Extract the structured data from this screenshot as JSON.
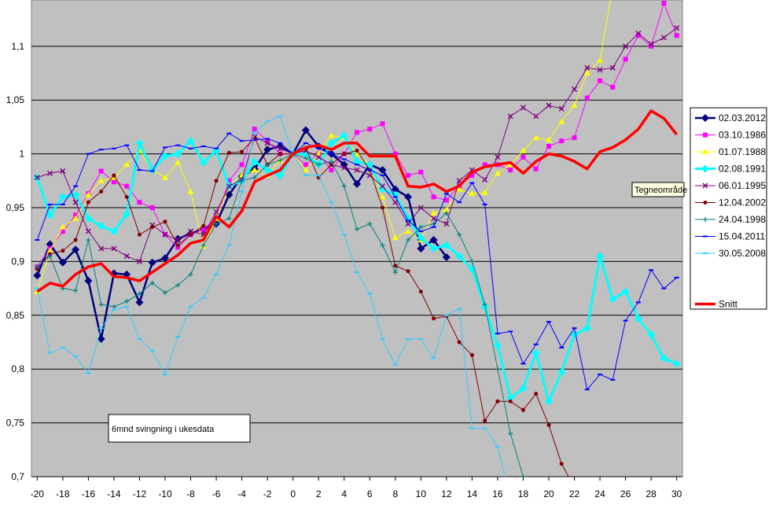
{
  "chart_data": {
    "type": "line",
    "annotation": "6mnd svingning i ukesdata",
    "tooltip": "Tegneområde",
    "x": [
      -20,
      -19,
      -18,
      -17,
      -16,
      -15,
      -14,
      -13,
      -12,
      -11,
      -10,
      -9,
      -8,
      -7,
      -6,
      -5,
      -4,
      -3,
      -2,
      -1,
      0,
      1,
      2,
      3,
      4,
      5,
      6,
      7,
      8,
      9,
      10,
      11,
      12,
      13,
      14,
      15,
      16,
      17,
      18,
      19,
      20,
      21,
      22,
      23,
      24,
      25,
      26,
      27,
      28,
      29,
      30
    ],
    "xlim": [
      -20.45,
      30.45
    ],
    "xticks": [
      -20,
      -18,
      -16,
      -14,
      -12,
      -10,
      -8,
      -6,
      -4,
      -2,
      0,
      2,
      4,
      6,
      8,
      10,
      12,
      14,
      16,
      18,
      20,
      22,
      24,
      26,
      28,
      30
    ],
    "ylim": [
      0.7,
      1.143
    ],
    "yticks": [
      {
        "value": 0.7,
        "label": "0,7"
      },
      {
        "value": 0.75,
        "label": "0,75"
      },
      {
        "value": 0.8,
        "label": "0,8"
      },
      {
        "value": 0.85,
        "label": "0,85"
      },
      {
        "value": 0.9,
        "label": "0,9"
      },
      {
        "value": 0.95,
        "label": "0,95"
      },
      {
        "value": 1,
        "label": "1"
      },
      {
        "value": 1.05,
        "label": "1,05"
      },
      {
        "value": 1.1,
        "label": "1,1"
      }
    ],
    "grid": true,
    "legend": "right",
    "series": [
      {
        "name": "02.03.2012",
        "color": "#000080",
        "marker": "diamond",
        "width": 2.5,
        "values": [
          0.887,
          0.916,
          0.899,
          0.911,
          0.882,
          0.828,
          0.889,
          0.888,
          0.862,
          0.899,
          0.903,
          0.921,
          0.926,
          0.93,
          0.935,
          0.962,
          0.979,
          0.986,
          1.004,
          1.007,
          1.0,
          1.022,
          1.007,
          1.0,
          0.99,
          0.972,
          0.99,
          0.985,
          0.967,
          0.96,
          0.912,
          0.92,
          0.904,
          null,
          null,
          null,
          null,
          null,
          null,
          null,
          null,
          null,
          null,
          null,
          null,
          null,
          null,
          null,
          null,
          null,
          null
        ]
      },
      {
        "name": "03.10.1986",
        "color": "#ff00ff",
        "marker": "square",
        "width": 1,
        "values": [
          0.895,
          0.912,
          0.928,
          0.943,
          0.963,
          0.984,
          0.974,
          0.97,
          0.955,
          0.95,
          0.925,
          0.913,
          0.925,
          0.93,
          0.94,
          0.975,
          0.99,
          1.023,
          1.012,
          1.0,
          1.0,
          0.99,
          1.0,
          0.985,
          1.0,
          1.02,
          1.023,
          1.028,
          1.0,
          0.98,
          0.983,
          0.96,
          0.957,
          0.97,
          0.98,
          0.99,
          0.99,
          0.985,
          0.997,
          0.986,
          1.007,
          1.012,
          1.015,
          1.052,
          1.068,
          1.062,
          1.088,
          1.11,
          1.1,
          1.14,
          1.11
        ]
      },
      {
        "name": "01.07.1988",
        "color": "#ffff00",
        "marker": "triangle",
        "width": 1,
        "values": [
          0.872,
          0.91,
          0.932,
          0.94,
          0.962,
          0.975,
          0.978,
          0.99,
          1.003,
          0.985,
          0.978,
          0.992,
          0.965,
          0.914,
          0.94,
          0.97,
          0.98,
          0.985,
          0.98,
          0.994,
          1.0,
          0.985,
          1.0,
          1.017,
          1.015,
          1.0,
          0.99,
          0.96,
          0.922,
          0.928,
          0.92,
          0.945,
          0.948,
          0.967,
          0.963,
          0.964,
          0.982,
          0.99,
          1.003,
          1.015,
          1.013,
          1.03,
          1.045,
          1.075,
          1.087,
          1.155,
          null,
          null,
          null,
          null,
          null
        ]
      },
      {
        "name": "02.08.1991",
        "color": "#00ffff",
        "marker": "diamond",
        "width": 3,
        "values": [
          0.978,
          0.943,
          0.96,
          0.962,
          0.94,
          0.933,
          0.928,
          0.944,
          1.01,
          0.985,
          0.998,
          1.0,
          1.012,
          0.992,
          1.003,
          0.97,
          0.975,
          0.993,
          0.985,
          0.98,
          1.0,
          1.0,
          0.99,
          1.01,
          1.017,
          0.993,
          0.99,
          0.967,
          0.962,
          0.94,
          0.922,
          0.912,
          0.915,
          0.905,
          0.893,
          0.858,
          0.822,
          0.773,
          0.782,
          0.815,
          0.77,
          0.797,
          0.832,
          0.838,
          0.905,
          0.865,
          0.872,
          0.847,
          0.832,
          0.81,
          0.805
        ]
      },
      {
        "name": "06.01.1995",
        "color": "#800080",
        "marker": "x",
        "width": 1,
        "values": [
          0.978,
          0.982,
          0.984,
          0.955,
          0.928,
          0.912,
          0.912,
          0.905,
          0.9,
          0.934,
          0.925,
          0.92,
          0.928,
          0.925,
          0.946,
          0.97,
          0.976,
          1.016,
          1.01,
          1.005,
          1.0,
          1.003,
          0.997,
          0.99,
          0.987,
          0.985,
          0.98,
          0.97,
          0.955,
          0.935,
          0.95,
          0.94,
          0.935,
          0.975,
          0.985,
          0.976,
          0.997,
          1.035,
          1.043,
          1.035,
          1.045,
          1.042,
          1.06,
          1.08,
          1.078,
          1.08,
          1.1,
          1.112,
          1.102,
          1.108,
          1.117
        ]
      },
      {
        "name": "12.04.2002",
        "color": "#800000",
        "marker": "circle",
        "width": 1,
        "values": [
          0.893,
          0.907,
          0.91,
          0.92,
          0.955,
          0.965,
          0.98,
          0.96,
          0.925,
          0.932,
          0.937,
          0.915,
          0.925,
          0.933,
          0.975,
          1.001,
          1.002,
          1.015,
          0.99,
          1.0,
          1.0,
          1.005,
          0.978,
          0.99,
          1.0,
          1.003,
          0.985,
          0.95,
          0.896,
          0.891,
          0.872,
          0.847,
          0.849,
          0.825,
          0.813,
          0.752,
          0.77,
          0.77,
          0.762,
          0.777,
          0.748,
          0.712,
          0.69,
          null,
          null,
          null,
          null,
          null,
          null,
          null,
          null
        ]
      },
      {
        "name": "24.04.1998",
        "color": "#008080",
        "marker": "plus",
        "width": 1,
        "values": [
          0.895,
          0.905,
          0.875,
          0.873,
          0.92,
          0.86,
          0.858,
          0.863,
          0.87,
          0.88,
          0.871,
          0.878,
          0.888,
          0.915,
          0.935,
          0.94,
          0.975,
          0.978,
          0.99,
          0.994,
          1.0,
          0.996,
          0.99,
          0.993,
          0.97,
          0.93,
          0.935,
          0.915,
          0.89,
          0.92,
          0.932,
          0.935,
          0.945,
          0.925,
          0.9,
          0.86,
          0.8,
          0.74,
          0.7,
          0.68,
          null,
          null,
          null,
          null,
          null,
          null,
          null,
          null,
          null,
          null,
          null
        ]
      },
      {
        "name": "15.04.2011",
        "color": "#0000ff",
        "marker": "dash",
        "width": 1,
        "values": [
          0.92,
          0.953,
          0.953,
          0.97,
          1.0,
          1.004,
          1.005,
          1.008,
          0.985,
          0.984,
          1.006,
          1.008,
          1.005,
          1.007,
          1.005,
          1.019,
          1.012,
          1.013,
          1.014,
          1.01,
          1.0,
          1.01,
          1.005,
          1.0,
          0.995,
          0.99,
          0.985,
          0.98,
          0.96,
          0.938,
          0.928,
          0.932,
          0.963,
          0.955,
          0.973,
          0.953,
          0.833,
          0.835,
          0.805,
          0.823,
          0.844,
          0.82,
          0.838,
          0.781,
          0.795,
          0.79,
          0.845,
          0.862,
          0.892,
          0.875,
          0.885
        ]
      },
      {
        "name": "30.05.2008",
        "color": "#33ccff",
        "marker": "dash",
        "width": 1,
        "values": [
          0.875,
          0.815,
          0.82,
          0.812,
          0.796,
          0.838,
          0.855,
          0.858,
          0.828,
          0.817,
          0.795,
          0.83,
          0.858,
          0.866,
          0.888,
          0.915,
          0.965,
          1.02,
          1.03,
          1.035,
          1.0,
          0.98,
          0.98,
          0.955,
          0.925,
          0.89,
          0.87,
          0.828,
          0.804,
          0.828,
          0.828,
          0.81,
          0.85,
          0.856,
          0.745,
          0.745,
          0.728,
          0.68,
          null,
          null,
          null,
          null,
          null,
          null,
          null,
          null,
          null,
          null,
          null,
          null,
          null
        ]
      },
      {
        "name": "Snitt",
        "color": "#ff0000",
        "marker": "none",
        "width": 3.5,
        "values": [
          0.872,
          0.88,
          0.877,
          0.888,
          0.895,
          0.898,
          0.886,
          0.885,
          0.882,
          0.89,
          0.898,
          0.906,
          0.917,
          0.92,
          0.942,
          0.932,
          0.947,
          0.974,
          0.98,
          0.985,
          1.0,
          1.006,
          1.008,
          1.004,
          1.01,
          1.01,
          0.998,
          0.998,
          0.998,
          0.97,
          0.969,
          0.972,
          0.965,
          0.97,
          0.983,
          0.988,
          0.99,
          0.992,
          0.982,
          0.993,
          1.0,
          0.998,
          0.993,
          0.986,
          1.002,
          1.006,
          1.013,
          1.023,
          1.04,
          1.033,
          1.018
        ]
      }
    ]
  }
}
